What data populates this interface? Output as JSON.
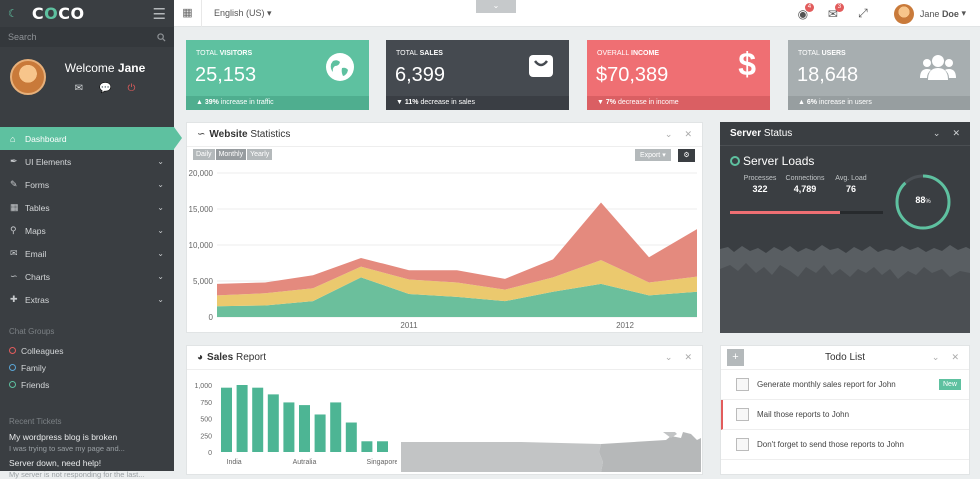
{
  "brand": {
    "logo": "COCO"
  },
  "sidebar": {
    "search_placeholder": "Search",
    "welcome_prefix": "Welcome",
    "welcome_name": "Jane",
    "items": [
      {
        "label": "Dashboard",
        "icon": "home-icon"
      },
      {
        "label": "UI Elements",
        "icon": "brush-icon"
      },
      {
        "label": "Forms",
        "icon": "pencil-icon"
      },
      {
        "label": "Tables",
        "icon": "table-icon"
      },
      {
        "label": "Maps",
        "icon": "map-marker-icon"
      },
      {
        "label": "Email",
        "icon": "envelope-icon"
      },
      {
        "label": "Charts",
        "icon": "line-chart-icon"
      },
      {
        "label": "Extras",
        "icon": "plus-icon"
      }
    ],
    "chat_title": "Chat Groups",
    "chat_groups": [
      {
        "label": "Colleagues",
        "color": "#e25c5c"
      },
      {
        "label": "Family",
        "color": "#5aa6d6"
      },
      {
        "label": "Friends",
        "color": "#5ec1a0"
      }
    ],
    "tickets_title": "Recent Tickets",
    "tickets": [
      {
        "title": "My wordpress blog is broken",
        "desc": "I was trying to save my page and..."
      },
      {
        "title": "Server down, need help!",
        "desc": "My server is not responding for the last..."
      }
    ]
  },
  "topbar": {
    "language": "English (US)",
    "notifications_count": "4",
    "messages_count": "3",
    "user_first": "Jane",
    "user_last": "Doe"
  },
  "tiles": [
    {
      "label_light": "Total",
      "label_bold": "Visitors",
      "value": "25,153",
      "trend": "39%",
      "trend_text": "increase in traffic",
      "icon": "globe-icon",
      "color": "#5ec1a0",
      "foot": "#4fae8f"
    },
    {
      "label_light": "Total",
      "label_bold": "Sales",
      "value": "6,399",
      "trend": "11%",
      "trend_text": "decrease in sales",
      "icon": "basket-icon",
      "color": "#454a50",
      "foot": "#3a3e44"
    },
    {
      "label_light": "Overall",
      "label_bold": "Income",
      "value": "$70,389",
      "trend": "7%",
      "trend_text": "decrease in income",
      "icon": "dollar-icon",
      "color": "#ef6f73",
      "foot": "#da5f63"
    },
    {
      "label_light": "Total",
      "label_bold": "Users",
      "value": "18,648",
      "trend": "6%",
      "trend_text": "increase in users",
      "icon": "users-icon",
      "color": "#a7aeb0",
      "foot": "#979ea0"
    }
  ],
  "stats_panel": {
    "title_bold": "Website",
    "title_rest": "Statistics",
    "ranges": [
      "Daily",
      "Monthly",
      "Yearly"
    ],
    "export_label": "Export"
  },
  "chart_data": {
    "type": "area",
    "x": [
      "2010-08",
      "2010-10",
      "2011-01",
      "2011-04",
      "2011-06",
      "2011-08",
      "2011-11",
      "2012-01",
      "2012-03",
      "2012-05",
      "2012-07"
    ],
    "xticks": [
      "2011",
      "2012"
    ],
    "yticks": [
      "0",
      "5,000",
      "10,000",
      "15,000",
      "20,000"
    ],
    "ylim": [
      0,
      20000
    ],
    "series": [
      {
        "color": "#6bbf9c",
        "values": [
          1500,
          1600,
          2200,
          5500,
          3200,
          2800,
          2200,
          3500,
          4600,
          3000,
          3500
        ]
      },
      {
        "color": "#ebc96e",
        "values": [
          1500,
          1700,
          1800,
          1500,
          2000,
          2000,
          1600,
          2000,
          3300,
          1800,
          2100
        ]
      },
      {
        "color": "#e48a7e",
        "values": [
          1600,
          1500,
          1800,
          1200,
          1300,
          1700,
          1500,
          2500,
          8000,
          3500,
          6600
        ]
      }
    ]
  },
  "server": {
    "title_bold": "Server",
    "title_rest": "Status",
    "loads_label": "Server Loads",
    "stats": [
      {
        "label": "Processes",
        "value": "322"
      },
      {
        "label": "Connections",
        "value": "4,789"
      },
      {
        "label": "Avg. Load",
        "value": "76"
      }
    ],
    "gauge_value": "88",
    "gauge_unit": "%",
    "gauge_fraction": 0.88,
    "load_fraction": 0.72
  },
  "sales": {
    "title_bold": "Sales",
    "title_rest": "Report",
    "yticks": [
      "1,000",
      "750",
      "500",
      "250",
      "0"
    ],
    "values": [
      960,
      1000,
      960,
      860,
      740,
      700,
      560,
      740,
      440,
      160,
      160
    ],
    "xlabels": [
      "India",
      "Autralia",
      "Singapore"
    ]
  },
  "todo": {
    "title": "Todo List",
    "items": [
      {
        "text": "Generate monthly sales report for John",
        "tag": "New",
        "accent": ""
      },
      {
        "text": "Mail those reports to John",
        "tag": "",
        "accent": "#e25c5c"
      },
      {
        "text": "Don't forget to send those reports to John",
        "tag": "",
        "accent": ""
      }
    ]
  }
}
